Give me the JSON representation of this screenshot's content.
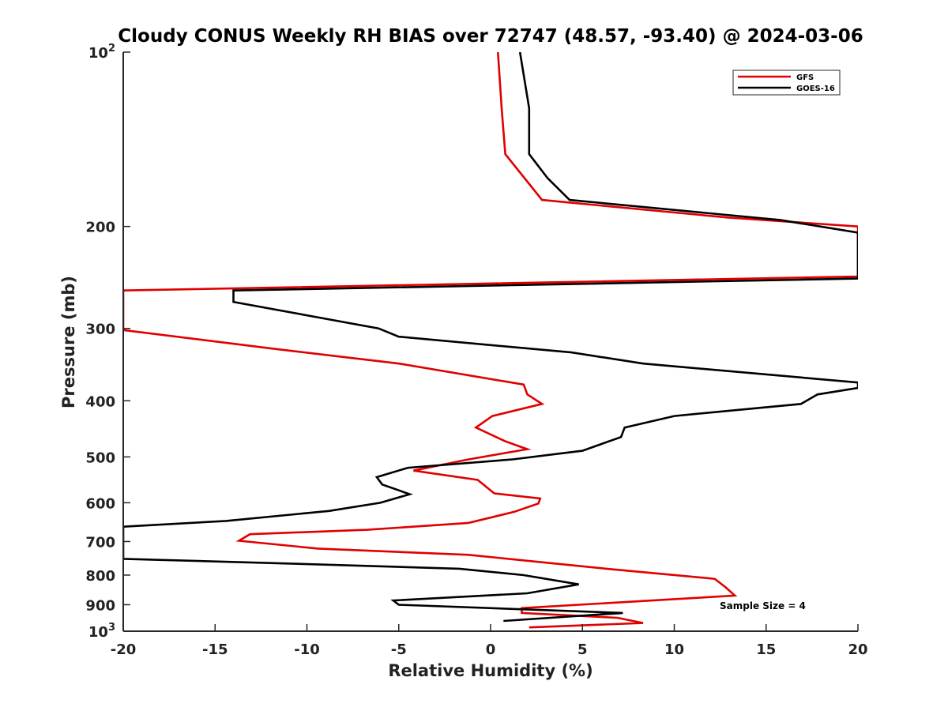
{
  "chart_data": {
    "type": "line",
    "title": "Cloudy CONUS Weekly RH BIAS over 72747 (48.57, -93.40) @ 2024-03-06",
    "xlabel": "Relative Humidity (%)",
    "ylabel": "Pressure (mb)",
    "xlim": [
      -20,
      20
    ],
    "ylim": [
      100,
      1000
    ],
    "yscale": "log",
    "y_reversed": true,
    "grid": false,
    "legend_position": "top-right",
    "x_ticks": [
      -20,
      -15,
      -10,
      -5,
      0,
      5,
      10,
      15,
      20
    ],
    "y_ticks": [
      {
        "value": 100,
        "base": "10",
        "exp": "2"
      },
      {
        "value": 200,
        "label": "200"
      },
      {
        "value": 300,
        "label": "300"
      },
      {
        "value": 400,
        "label": "400"
      },
      {
        "value": 500,
        "label": "500"
      },
      {
        "value": 600,
        "label": "600"
      },
      {
        "value": 700,
        "label": "700"
      },
      {
        "value": 800,
        "label": "800"
      },
      {
        "value": 900,
        "label": "900"
      },
      {
        "value": 1000,
        "base": "10",
        "exp": "3"
      }
    ],
    "annotation": "Sample Size = 4",
    "series": [
      {
        "name": "GFS",
        "color": "#e00000",
        "points": [
          [
            0.4,
            100
          ],
          [
            0.6,
            125
          ],
          [
            0.8,
            150
          ],
          [
            2.8,
            180
          ],
          [
            12.9,
            193
          ],
          [
            20.0,
            200
          ],
          [
            20.0,
            244
          ],
          [
            -20.0,
            258
          ],
          [
            -20.0,
            302
          ],
          [
            -11.9,
            325
          ],
          [
            -5.0,
            345
          ],
          [
            1.8,
            375
          ],
          [
            2.0,
            390
          ],
          [
            2.8,
            405
          ],
          [
            0.1,
            425
          ],
          [
            -0.8,
            445
          ],
          [
            0.8,
            470
          ],
          [
            2.0,
            485
          ],
          [
            -1.2,
            505
          ],
          [
            -4.2,
            528
          ],
          [
            -0.7,
            548
          ],
          [
            0.2,
            578
          ],
          [
            2.7,
            590
          ],
          [
            2.6,
            602
          ],
          [
            1.3,
            622
          ],
          [
            -1.2,
            650
          ],
          [
            -6.7,
            668
          ],
          [
            -13.1,
            680
          ],
          [
            -13.7,
            698
          ],
          [
            -9.4,
            720
          ],
          [
            -1.2,
            738
          ],
          [
            6.3,
            780
          ],
          [
            12.2,
            812
          ],
          [
            12.8,
            840
          ],
          [
            13.3,
            868
          ],
          [
            8.8,
            885
          ],
          [
            1.7,
            912
          ],
          [
            1.7,
            930
          ],
          [
            6.9,
            948
          ],
          [
            8.3,
            968
          ],
          [
            2.1,
            985
          ]
        ]
      },
      {
        "name": "GOES-16",
        "color": "#000000",
        "points": [
          [
            1.6,
            100
          ],
          [
            2.1,
            125
          ],
          [
            2.1,
            150
          ],
          [
            3.1,
            165
          ],
          [
            4.3,
            180
          ],
          [
            15.8,
            195
          ],
          [
            20.0,
            205
          ],
          [
            20.0,
            246
          ],
          [
            -14.0,
            258
          ],
          [
            -14.0,
            270
          ],
          [
            -6.1,
            300
          ],
          [
            -5.0,
            310
          ],
          [
            4.4,
            330
          ],
          [
            8.3,
            345
          ],
          [
            20.0,
            372
          ],
          [
            20.0,
            380
          ],
          [
            17.8,
            390
          ],
          [
            16.9,
            405
          ],
          [
            10.0,
            425
          ],
          [
            7.3,
            445
          ],
          [
            7.1,
            462
          ],
          [
            5.0,
            488
          ],
          [
            1.2,
            505
          ],
          [
            -4.5,
            522
          ],
          [
            -6.2,
            542
          ],
          [
            -5.9,
            558
          ],
          [
            -4.4,
            580
          ],
          [
            -6.0,
            600
          ],
          [
            -8.8,
            620
          ],
          [
            -14.4,
            645
          ],
          [
            -20.0,
            660
          ],
          [
            -20.0,
            750
          ],
          [
            -10.5,
            765
          ],
          [
            -1.7,
            780
          ],
          [
            1.8,
            800
          ],
          [
            4.8,
            830
          ],
          [
            2.0,
            860
          ],
          [
            -5.3,
            885
          ],
          [
            -5.0,
            900
          ],
          [
            7.2,
            930
          ],
          [
            0.7,
            960
          ]
        ]
      }
    ]
  }
}
